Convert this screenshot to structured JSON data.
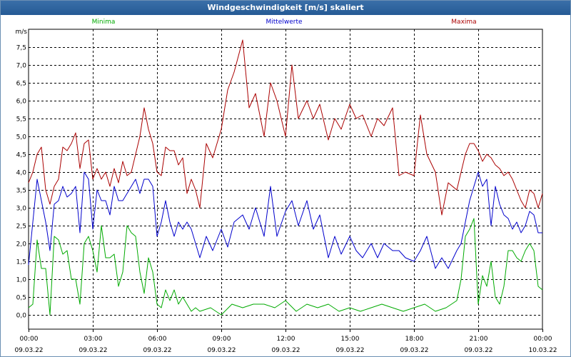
{
  "window": {
    "title": "Windgeschwindigkeit [m/s] skaliert"
  },
  "chart_data": {
    "type": "line",
    "title": "Windgeschwindigkeit [m/s] skaliert",
    "ylabel": "m/s",
    "xlabel": "",
    "ylim": [
      -0.4,
      8.0
    ],
    "xlim_hours": [
      0,
      24
    ],
    "grid": true,
    "y_ticks": [
      "0,0",
      "0,5",
      "1,0",
      "1,5",
      "2,0",
      "2,5",
      "3,0",
      "3,5",
      "4,0",
      "4,5",
      "5,0",
      "5,5",
      "6,0",
      "6,5",
      "7,0",
      "7,5"
    ],
    "y_tick_values": [
      0,
      0.5,
      1,
      1.5,
      2,
      2.5,
      3,
      3.5,
      4,
      4.5,
      5,
      5.5,
      6,
      6.5,
      7,
      7.5
    ],
    "x_ticks": [
      {
        "hour": 0,
        "time": "00:00",
        "date": "09.03.22"
      },
      {
        "hour": 3,
        "time": "03:00",
        "date": "09.03.22"
      },
      {
        "hour": 6,
        "time": "06:00",
        "date": "09.03.22"
      },
      {
        "hour": 9,
        "time": "09:00",
        "date": "09.03.22"
      },
      {
        "hour": 12,
        "time": "12:00",
        "date": "09.03.22"
      },
      {
        "hour": 15,
        "time": "15:00",
        "date": "09.03.22"
      },
      {
        "hour": 18,
        "time": "18:00",
        "date": "09.03.22"
      },
      {
        "hour": 21,
        "time": "21:00",
        "date": "09.03.22"
      },
      {
        "hour": 24,
        "time": "00:00",
        "date": "10.03.22"
      }
    ],
    "series": [
      {
        "name": "Minima",
        "color": "#00aa00",
        "x": [
          0,
          0.2,
          0.4,
          0.6,
          0.8,
          1,
          1.2,
          1.4,
          1.6,
          1.8,
          2,
          2.2,
          2.4,
          2.6,
          2.8,
          3,
          3.2,
          3.4,
          3.6,
          3.8,
          4,
          4.2,
          4.4,
          4.6,
          4.8,
          5,
          5.2,
          5.4,
          5.6,
          5.8,
          6,
          6.2,
          6.4,
          6.6,
          6.8,
          7,
          7.2,
          7.4,
          7.6,
          7.8,
          8,
          8.5,
          9,
          9.5,
          10,
          10.5,
          11,
          11.5,
          12,
          12.5,
          13,
          13.5,
          14,
          14.5,
          15,
          15.5,
          16,
          16.5,
          17,
          17.5,
          18,
          18.5,
          19,
          19.5,
          20,
          20.2,
          20.4,
          20.6,
          20.8,
          21,
          21.2,
          21.4,
          21.6,
          21.8,
          22,
          22.2,
          22.4,
          22.6,
          22.8,
          23,
          23.2,
          23.4,
          23.6,
          23.8,
          24
        ],
        "values": [
          0.2,
          0.3,
          2.1,
          1.3,
          1.3,
          0,
          2.2,
          2.1,
          1.7,
          1.8,
          1.0,
          1.0,
          0.3,
          2.0,
          2.2,
          1.8,
          1.2,
          2.5,
          1.6,
          1.6,
          1.7,
          0.8,
          1.2,
          2.5,
          2.3,
          2.2,
          1.2,
          0.6,
          1.6,
          1.2,
          0.3,
          0.2,
          0.7,
          0.4,
          0.7,
          0.3,
          0.5,
          0.3,
          0.1,
          0.2,
          0.1,
          0.2,
          0.0,
          0.3,
          0.2,
          0.3,
          0.3,
          0.2,
          0.4,
          0.1,
          0.3,
          0.2,
          0.3,
          0.1,
          0.2,
          0.1,
          0.2,
          0.3,
          0.2,
          0.1,
          0.2,
          0.3,
          0.1,
          0.2,
          0.4,
          1.0,
          2.2,
          2.4,
          2.7,
          0.3,
          1.1,
          0.8,
          1.5,
          0.5,
          0.3,
          0.8,
          1.8,
          1.8,
          1.6,
          1.5,
          1.8,
          2.0,
          1.8,
          0.8,
          0.7
        ]
      },
      {
        "name": "Mittelwerte",
        "color": "#0000cc",
        "x": [
          0,
          0.2,
          0.4,
          0.6,
          0.8,
          1,
          1.2,
          1.4,
          1.6,
          1.8,
          2,
          2.2,
          2.4,
          2.6,
          2.8,
          3,
          3.2,
          3.4,
          3.6,
          3.8,
          4,
          4.2,
          4.4,
          4.6,
          4.8,
          5,
          5.2,
          5.4,
          5.6,
          5.8,
          6,
          6.2,
          6.4,
          6.6,
          6.8,
          7,
          7.2,
          7.4,
          7.6,
          7.8,
          8,
          8.3,
          8.6,
          9,
          9.3,
          9.6,
          10,
          10.3,
          10.6,
          11,
          11.3,
          11.6,
          12,
          12.3,
          12.6,
          13,
          13.3,
          13.6,
          14,
          14.3,
          14.6,
          15,
          15.3,
          15.6,
          16,
          16.3,
          16.6,
          17,
          17.3,
          17.6,
          18,
          18.3,
          18.6,
          19,
          19.3,
          19.6,
          20,
          20.2,
          20.4,
          20.6,
          20.8,
          21,
          21.2,
          21.4,
          21.6,
          21.8,
          22,
          22.2,
          22.4,
          22.6,
          22.8,
          23,
          23.2,
          23.4,
          23.6,
          23.8,
          24
        ],
        "values": [
          1.4,
          2.6,
          3.8,
          3.2,
          2.6,
          1.8,
          3.1,
          3.2,
          3.6,
          3.3,
          3.4,
          3.6,
          2.3,
          4.0,
          3.8,
          2.4,
          3.5,
          3.2,
          3.2,
          2.8,
          3.6,
          3.2,
          3.2,
          3.4,
          3.6,
          3.8,
          3.4,
          3.8,
          3.8,
          3.6,
          2.2,
          2.6,
          3.2,
          2.6,
          2.2,
          2.6,
          2.4,
          2.6,
          2.4,
          2.0,
          1.6,
          2.2,
          1.8,
          2.4,
          1.9,
          2.6,
          2.8,
          2.4,
          3.0,
          2.2,
          3.6,
          2.2,
          2.9,
          3.2,
          2.5,
          3.2,
          2.4,
          2.8,
          1.6,
          2.2,
          1.7,
          2.2,
          1.8,
          1.6,
          2.0,
          1.6,
          2.0,
          1.8,
          1.8,
          1.6,
          1.5,
          1.8,
          2.2,
          1.3,
          1.6,
          1.3,
          1.8,
          2.0,
          2.6,
          3.2,
          3.6,
          4.0,
          3.6,
          3.8,
          2.5,
          3.6,
          3.1,
          2.8,
          2.7,
          2.4,
          2.6,
          2.3,
          2.5,
          2.9,
          2.8,
          2.3,
          2.3
        ]
      },
      {
        "name": "Maxima",
        "color": "#aa0000",
        "x": [
          0,
          0.2,
          0.4,
          0.6,
          0.8,
          1,
          1.2,
          1.4,
          1.6,
          1.8,
          2,
          2.2,
          2.4,
          2.6,
          2.8,
          3,
          3.2,
          3.4,
          3.6,
          3.8,
          4,
          4.2,
          4.4,
          4.6,
          4.8,
          5,
          5.2,
          5.4,
          5.6,
          5.8,
          6,
          6.2,
          6.4,
          6.6,
          6.8,
          7,
          7.2,
          7.4,
          7.6,
          7.8,
          8,
          8.3,
          8.6,
          9,
          9.3,
          9.6,
          10,
          10.3,
          10.6,
          11,
          11.3,
          11.6,
          12,
          12.3,
          12.6,
          13,
          13.3,
          13.6,
          14,
          14.3,
          14.6,
          15,
          15.3,
          15.6,
          16,
          16.3,
          16.6,
          17,
          17.3,
          17.6,
          18,
          18.3,
          18.6,
          19,
          19.3,
          19.6,
          20,
          20.2,
          20.4,
          20.6,
          20.8,
          21,
          21.2,
          21.4,
          21.6,
          21.8,
          22,
          22.2,
          22.4,
          22.6,
          22.8,
          23,
          23.2,
          23.4,
          23.6,
          23.8,
          24
        ],
        "values": [
          3.7,
          4.0,
          4.5,
          4.7,
          3.5,
          3.1,
          3.6,
          3.8,
          4.7,
          4.6,
          4.8,
          5.1,
          4.1,
          4.8,
          4.9,
          3.8,
          4.1,
          3.8,
          4.0,
          3.6,
          4.1,
          3.7,
          4.3,
          3.9,
          4.0,
          4.5,
          5.0,
          5.8,
          5.2,
          4.8,
          4.0,
          3.9,
          4.7,
          4.6,
          4.6,
          4.2,
          4.4,
          3.4,
          3.8,
          3.5,
          3.0,
          4.8,
          4.4,
          5.2,
          6.3,
          6.8,
          7.7,
          5.8,
          6.2,
          5.0,
          6.5,
          6.0,
          5.0,
          7.0,
          5.5,
          6.0,
          5.5,
          5.9,
          4.9,
          5.5,
          5.2,
          5.9,
          5.5,
          5.6,
          5.0,
          5.5,
          5.3,
          5.8,
          3.9,
          4.0,
          3.9,
          5.6,
          4.5,
          4.0,
          2.8,
          3.7,
          3.5,
          4.0,
          4.5,
          4.8,
          4.8,
          4.6,
          4.3,
          4.5,
          4.4,
          4.2,
          4.1,
          3.9,
          4.0,
          3.8,
          3.5,
          3.2,
          3.0,
          3.5,
          3.4,
          3.0,
          3.4
        ]
      }
    ]
  }
}
